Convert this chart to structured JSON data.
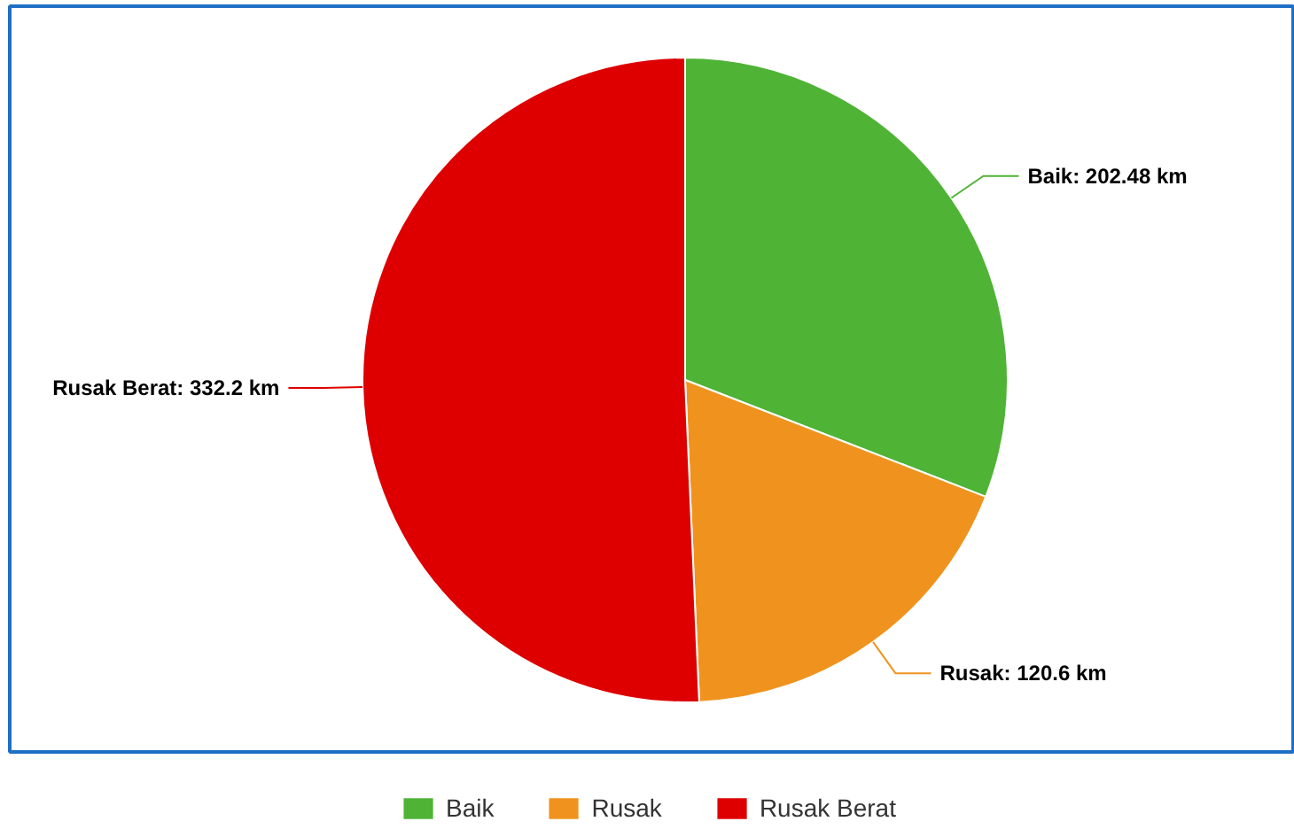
{
  "chart_data": {
    "type": "pie",
    "categories": [
      "Baik",
      "Rusak",
      "Rusak Berat"
    ],
    "values": [
      202.48,
      120.6,
      332.2
    ],
    "colors": [
      "#4fb336",
      "#f0931e",
      "#de0000"
    ],
    "value_labels": [
      "Baik: 202.48 km",
      "Rusak: 120.6 km",
      "Rusak Berat: 332.2 km"
    ],
    "legend": "bottom"
  }
}
